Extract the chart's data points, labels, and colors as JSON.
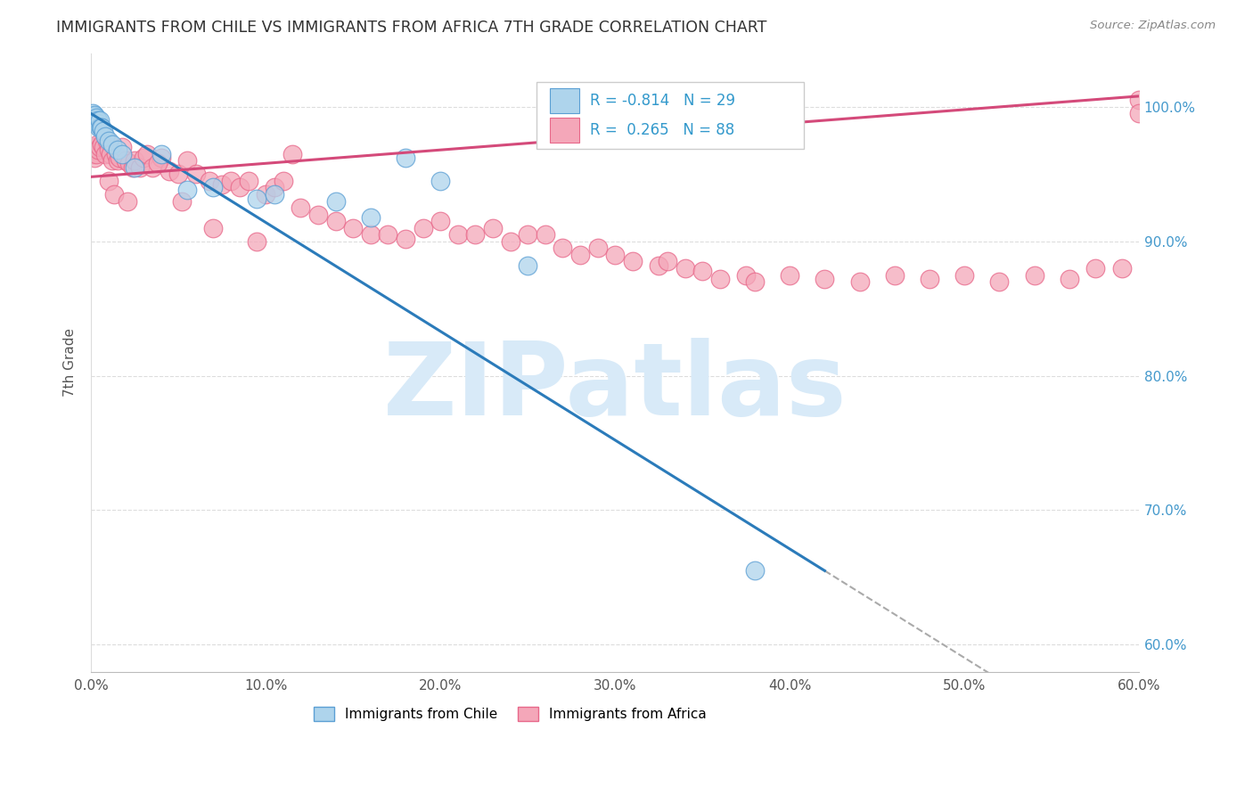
{
  "title": "IMMIGRANTS FROM CHILE VS IMMIGRANTS FROM AFRICA 7TH GRADE CORRELATION CHART",
  "source": "Source: ZipAtlas.com",
  "ylabel": "7th Grade",
  "x_tick_labels": [
    "0.0%",
    "10.0%",
    "20.0%",
    "30.0%",
    "40.0%",
    "50.0%",
    "60.0%"
  ],
  "x_tick_values": [
    0.0,
    10.0,
    20.0,
    30.0,
    40.0,
    50.0,
    60.0
  ],
  "y_tick_labels": [
    "60.0%",
    "70.0%",
    "80.0%",
    "90.0%",
    "100.0%"
  ],
  "y_tick_values": [
    60.0,
    70.0,
    80.0,
    90.0,
    100.0
  ],
  "xlim": [
    0.0,
    60.0
  ],
  "ylim": [
    58.0,
    104.0
  ],
  "chile_color": "#aed4ec",
  "africa_color": "#f4a7b9",
  "chile_edge_color": "#5b9fd4",
  "africa_edge_color": "#e8688a",
  "chile_line_color": "#2b7bba",
  "africa_line_color": "#d44a7a",
  "chile_R": -0.814,
  "chile_N": 29,
  "africa_R": 0.265,
  "africa_N": 88,
  "watermark": "ZIPatlas",
  "legend_label_chile": "Immigrants from Chile",
  "legend_label_africa": "Immigrants from Africa",
  "chile_line_x0": 0.0,
  "chile_line_y0": 99.5,
  "chile_line_x1": 42.0,
  "chile_line_y1": 65.5,
  "africa_line_x0": 0.0,
  "africa_line_y0": 94.8,
  "africa_line_x1": 60.0,
  "africa_line_y1": 100.8,
  "dash_start_x": 42.0,
  "dash_end_x": 60.0,
  "chile_pts_x": [
    0.1,
    0.15,
    0.2,
    0.25,
    0.3,
    0.35,
    0.4,
    0.45,
    0.5,
    0.55,
    0.6,
    0.7,
    0.8,
    1.0,
    1.2,
    1.5,
    1.8,
    2.5,
    4.0,
    5.5,
    7.0,
    9.5,
    10.5,
    14.0,
    16.0,
    18.0,
    20.0,
    25.0,
    38.0
  ],
  "chile_pts_y": [
    99.5,
    99.3,
    99.4,
    99.0,
    99.2,
    98.8,
    99.0,
    98.5,
    99.0,
    98.5,
    98.5,
    98.2,
    97.8,
    97.5,
    97.2,
    96.8,
    96.5,
    95.5,
    96.5,
    93.8,
    94.0,
    93.2,
    93.5,
    93.0,
    91.8,
    96.2,
    94.5,
    88.2,
    65.5
  ],
  "africa_pts_x": [
    0.1,
    0.15,
    0.2,
    0.25,
    0.3,
    0.35,
    0.4,
    0.5,
    0.6,
    0.7,
    0.8,
    0.9,
    1.0,
    1.1,
    1.2,
    1.4,
    1.5,
    1.6,
    1.8,
    2.0,
    2.2,
    2.4,
    2.5,
    2.8,
    3.0,
    3.2,
    3.5,
    4.0,
    4.5,
    5.0,
    5.5,
    6.0,
    6.8,
    7.5,
    8.0,
    8.5,
    9.0,
    10.0,
    10.5,
    11.0,
    12.0,
    13.0,
    14.0,
    15.0,
    16.0,
    17.0,
    18.0,
    19.0,
    20.0,
    21.0,
    22.0,
    23.0,
    24.0,
    25.0,
    26.0,
    27.0,
    28.0,
    29.0,
    30.0,
    31.0,
    32.5,
    33.0,
    34.0,
    35.0,
    36.0,
    37.5,
    38.0,
    40.0,
    42.0,
    44.0,
    46.0,
    48.0,
    50.0,
    52.0,
    54.0,
    56.0,
    57.5,
    59.0,
    60.0,
    1.0,
    1.3,
    2.1,
    3.8,
    5.2,
    7.0,
    9.5,
    11.5,
    60.0
  ],
  "africa_pts_y": [
    96.5,
    96.8,
    96.2,
    97.0,
    96.5,
    97.2,
    96.8,
    97.0,
    97.2,
    97.0,
    96.5,
    97.5,
    96.8,
    96.5,
    96.0,
    96.5,
    96.0,
    96.2,
    97.0,
    96.0,
    95.8,
    95.5,
    96.0,
    95.5,
    96.2,
    96.5,
    95.5,
    96.2,
    95.2,
    95.0,
    96.0,
    95.0,
    94.5,
    94.2,
    94.5,
    94.0,
    94.5,
    93.5,
    94.0,
    94.5,
    92.5,
    92.0,
    91.5,
    91.0,
    90.5,
    90.5,
    90.2,
    91.0,
    91.5,
    90.5,
    90.5,
    91.0,
    90.0,
    90.5,
    90.5,
    89.5,
    89.0,
    89.5,
    89.0,
    88.5,
    88.2,
    88.5,
    88.0,
    87.8,
    87.2,
    87.5,
    87.0,
    87.5,
    87.2,
    87.0,
    87.5,
    87.2,
    87.5,
    87.0,
    87.5,
    87.2,
    88.0,
    88.0,
    100.5,
    94.5,
    93.5,
    93.0,
    95.8,
    93.0,
    91.0,
    90.0,
    96.5,
    99.5
  ]
}
